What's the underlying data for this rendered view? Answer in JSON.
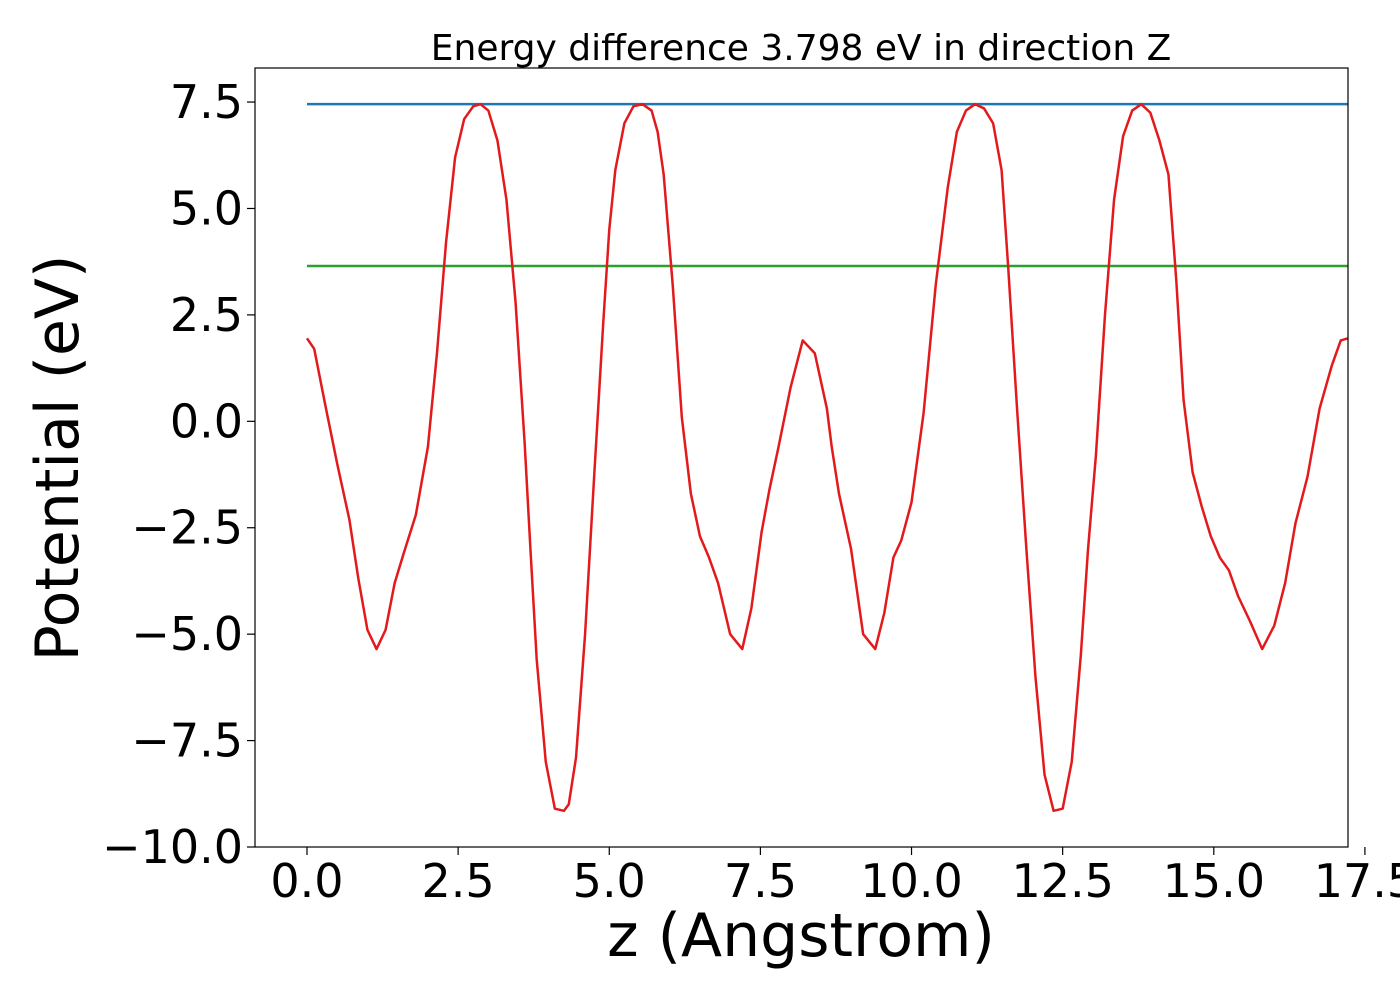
{
  "chart_data": {
    "type": "line",
    "title": "Energy difference 3.798 eV in direction Z",
    "xlabel": "z (Angstrom)",
    "ylabel": "Potential (eV)",
    "xlim": [
      -0.86,
      17.22
    ],
    "ylim": [
      -10.0,
      8.3
    ],
    "xticks": [
      0.0,
      2.5,
      5.0,
      7.5,
      10.0,
      12.5,
      15.0,
      17.5
    ],
    "xtick_labels": [
      "0.0",
      "2.5",
      "5.0",
      "7.5",
      "10.0",
      "12.5",
      "15.0",
      "17.5"
    ],
    "yticks": [
      7.5,
      5.0,
      2.5,
      0.0,
      -2.5,
      -5.0,
      -7.5,
      -10.0
    ],
    "ytick_labels": [
      "7.5",
      "5.0",
      "2.5",
      "0.0",
      "−2.5",
      "−5.0",
      "−7.5",
      "−10.0"
    ],
    "grid": false,
    "series": [
      {
        "color": "#1f77b4",
        "x": [
          0.0,
          17.22
        ],
        "y": [
          7.45,
          7.45
        ]
      },
      {
        "color": "#2ca02c",
        "x": [
          0.0,
          17.22
        ],
        "y": [
          3.65,
          3.65
        ]
      },
      {
        "color": "#e31a1c",
        "x": [
          0.0,
          0.12,
          0.3,
          0.5,
          0.7,
          0.85,
          1.0,
          1.15,
          1.3,
          1.45,
          1.6,
          1.8,
          2.0,
          2.15,
          2.3,
          2.45,
          2.6,
          2.75,
          2.87,
          3.0,
          3.15,
          3.3,
          3.45,
          3.6,
          3.7,
          3.8,
          3.95,
          4.1,
          4.25,
          4.33,
          4.45,
          4.6,
          4.75,
          4.9,
          5.0,
          5.1,
          5.25,
          5.4,
          5.55,
          5.7,
          5.8,
          5.9,
          6.05,
          6.2,
          6.35,
          6.5,
          6.65,
          6.8,
          7.0,
          7.2,
          7.35,
          7.52,
          7.65,
          7.8,
          8.0,
          8.2,
          8.4,
          8.6,
          8.68,
          8.8,
          9.0,
          9.2,
          9.4,
          9.55,
          9.7,
          9.83,
          10.0,
          10.2,
          10.4,
          10.6,
          10.75,
          10.9,
          11.05,
          11.2,
          11.35,
          11.49,
          11.6,
          11.75,
          11.9,
          12.05,
          12.2,
          12.35,
          12.5,
          12.65,
          12.8,
          12.92,
          13.05,
          13.2,
          13.35,
          13.5,
          13.65,
          13.8,
          13.95,
          14.1,
          14.25,
          14.38,
          14.5,
          14.65,
          14.8,
          14.95,
          15.1,
          15.25,
          15.4,
          15.6,
          15.8,
          16.0,
          16.18,
          16.35,
          16.55,
          16.75,
          16.95,
          17.1,
          17.22
        ],
        "y": [
          1.95,
          1.7,
          0.4,
          -1.0,
          -2.3,
          -3.7,
          -4.9,
          -5.35,
          -4.9,
          -3.8,
          -3.1,
          -2.2,
          -0.6,
          1.6,
          4.2,
          6.2,
          7.1,
          7.4,
          7.45,
          7.3,
          6.6,
          5.2,
          2.8,
          -0.5,
          -3.1,
          -5.6,
          -8.0,
          -9.1,
          -9.15,
          -9.0,
          -7.9,
          -5.0,
          -1.3,
          2.3,
          4.5,
          5.9,
          7.0,
          7.4,
          7.45,
          7.3,
          6.8,
          5.8,
          3.2,
          0.1,
          -1.7,
          -2.7,
          -3.2,
          -3.8,
          -5.0,
          -5.35,
          -4.4,
          -2.6,
          -1.6,
          -0.6,
          0.8,
          1.9,
          1.6,
          0.3,
          -0.6,
          -1.7,
          -3.0,
          -5.0,
          -5.35,
          -4.5,
          -3.2,
          -2.8,
          -1.9,
          0.2,
          3.2,
          5.5,
          6.8,
          7.3,
          7.45,
          7.35,
          7.0,
          5.9,
          3.6,
          0.2,
          -3.0,
          -6.0,
          -8.3,
          -9.15,
          -9.1,
          -8.0,
          -5.5,
          -3.0,
          -0.8,
          2.5,
          5.2,
          6.7,
          7.3,
          7.45,
          7.25,
          6.6,
          5.8,
          3.3,
          0.5,
          -1.2,
          -2.0,
          -2.7,
          -3.2,
          -3.5,
          -4.1,
          -4.7,
          -5.35,
          -4.8,
          -3.8,
          -2.4,
          -1.3,
          0.3,
          1.3,
          1.9,
          1.95
        ]
      }
    ]
  }
}
